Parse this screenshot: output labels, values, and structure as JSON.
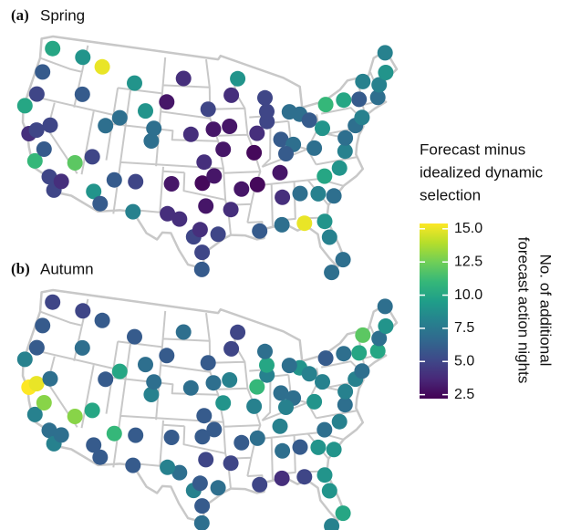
{
  "chart_data": {
    "type": "map",
    "color_scale": "viridis",
    "legend_title": [
      "Forecast minus",
      "idealized dynamic",
      "selection"
    ],
    "colorbar_label": [
      "No. of additional",
      "forecast action nights"
    ],
    "colorbar_lim": [
      2.2,
      15.4
    ],
    "colorbar_ticks": [
      {
        "value": 2.5,
        "label": "2.5"
      },
      {
        "value": 5,
        "label": "5.0"
      },
      {
        "value": 7.5,
        "label": "7.5"
      },
      {
        "value": 10,
        "label": "10.0"
      },
      {
        "value": 12.5,
        "label": "12.5"
      },
      {
        "value": 15,
        "label": "15.0"
      }
    ],
    "lon": [
      -122.5,
      -117.4,
      -123.0,
      -122.9,
      -124.1,
      -122.4,
      -121.5,
      -120.6,
      -119.8,
      -118.2,
      -117.2,
      -116.5,
      -119.8,
      -115.2,
      -112.0,
      -110.9,
      -111.9,
      -116.2,
      -114.0,
      -108.5,
      -106.6,
      -105.0,
      -106.3,
      -104.8,
      -100.8,
      -103.2,
      -101.7,
      -98.5,
      -97.0,
      -97.7,
      -95.4,
      -97.5,
      -96.0,
      -97.3,
      -96.8,
      -93.2,
      -93.6,
      -94.6,
      -90.2,
      -92.2,
      -90.1,
      -90.0,
      -86.8,
      -86.8,
      -88.0,
      -87.9,
      -86.2,
      -84.4,
      -84.5,
      -83.0,
      -81.7,
      -84.3,
      -81.4,
      -80.2,
      -81.7,
      -80.8,
      -78.6,
      -80.0,
      -77.4,
      -77.0,
      -75.2,
      -74.0,
      -73.8,
      -76.1,
      -78.9,
      -80.0,
      -71.0,
      -70.3,
      -68.8,
      -68.0,
      -72.6,
      -84.5,
      -88.0,
      -92.1,
      -89.6,
      -85.7,
      -81.6,
      -87.2,
      -93.7,
      -100.4,
      -102.0,
      -95.9,
      -110.0,
      -99.3,
      -113.0,
      -106.5,
      -109.5,
      -82.0,
      -97.4,
      -97.4,
      -81.8
    ],
    "lat": [
      47.7,
      47.6,
      44.9,
      42.4,
      40.8,
      38.0,
      38.6,
      35.3,
      36.8,
      34.0,
      32.7,
      33.8,
      39.5,
      36.1,
      33.4,
      32.2,
      40.7,
      43.6,
      47.0,
      45.8,
      35.1,
      39.7,
      42.9,
      41.1,
      46.8,
      44.1,
      35.2,
      29.5,
      32.9,
      30.3,
      29.8,
      35.4,
      41.3,
      37.7,
      43.5,
      45.0,
      41.6,
      39.1,
      38.6,
      34.7,
      30.0,
      35.1,
      33.5,
      36.2,
      41.9,
      43.0,
      39.8,
      33.7,
      39.1,
      42.3,
      41.5,
      30.4,
      28.5,
      25.8,
      30.3,
      35.2,
      35.8,
      32.9,
      37.5,
      38.9,
      40.0,
      40.7,
      42.7,
      43.0,
      42.9,
      40.4,
      42.4,
      43.7,
      44.8,
      46.9,
      44.5,
      42.7,
      44.5,
      46.8,
      40.7,
      38.2,
      38.4,
      30.5,
      32.5,
      31.4,
      31.9,
      36.2,
      41.8,
      40.7,
      37.1,
      31.8,
      35.0,
      33.4,
      27.8,
      25.9,
      24.6
    ],
    "panels": [
      {
        "label": "(a)",
        "title": "Spring",
        "values": [
          10,
          9,
          6,
          5,
          10,
          4,
          5,
          11,
          6,
          5,
          5,
          4,
          5,
          12,
          9,
          6,
          7,
          6,
          15,
          9,
          5,
          7,
          9,
          7,
          4,
          3,
          3,
          5,
          3,
          4,
          5,
          2.5,
          3,
          4,
          5,
          4,
          3,
          3,
          2.5,
          3,
          6,
          2.5,
          4,
          3,
          5,
          5,
          6,
          7,
          7,
          7,
          6,
          15,
          8,
          7,
          9,
          10,
          9,
          7,
          8,
          7,
          7,
          8,
          6,
          10,
          11,
          9,
          7,
          8,
          9,
          8,
          8,
          7,
          5,
          9,
          4,
          6,
          7,
          7,
          4,
          4,
          4,
          3,
          7,
          4,
          5,
          8,
          6,
          8,
          5,
          6,
          7
        ]
      },
      {
        "label": "(b)",
        "title": "Autumn",
        "values": [
          5,
          5,
          6,
          6,
          8,
          15.5,
          15,
          8,
          13,
          7,
          8,
          7,
          7,
          13,
          6,
          6,
          6,
          7,
          6,
          6,
          6,
          8,
          7,
          7,
          7,
          6,
          6,
          8,
          5,
          6,
          7,
          6,
          7,
          6,
          6,
          5,
          8,
          9,
          8,
          6,
          5,
          7,
          7,
          8,
          8,
          10,
          7,
          6,
          7,
          9,
          8,
          5,
          9,
          10,
          9,
          7,
          8,
          9,
          7,
          8,
          8,
          7,
          10,
          7,
          6,
          8,
          10,
          7,
          9,
          7,
          12,
          7,
          7,
          5,
          11,
          8,
          9,
          4,
          5,
          7,
          8,
          6,
          10,
          7,
          10,
          6,
          11,
          9,
          6,
          7,
          8
        ]
      }
    ]
  }
}
